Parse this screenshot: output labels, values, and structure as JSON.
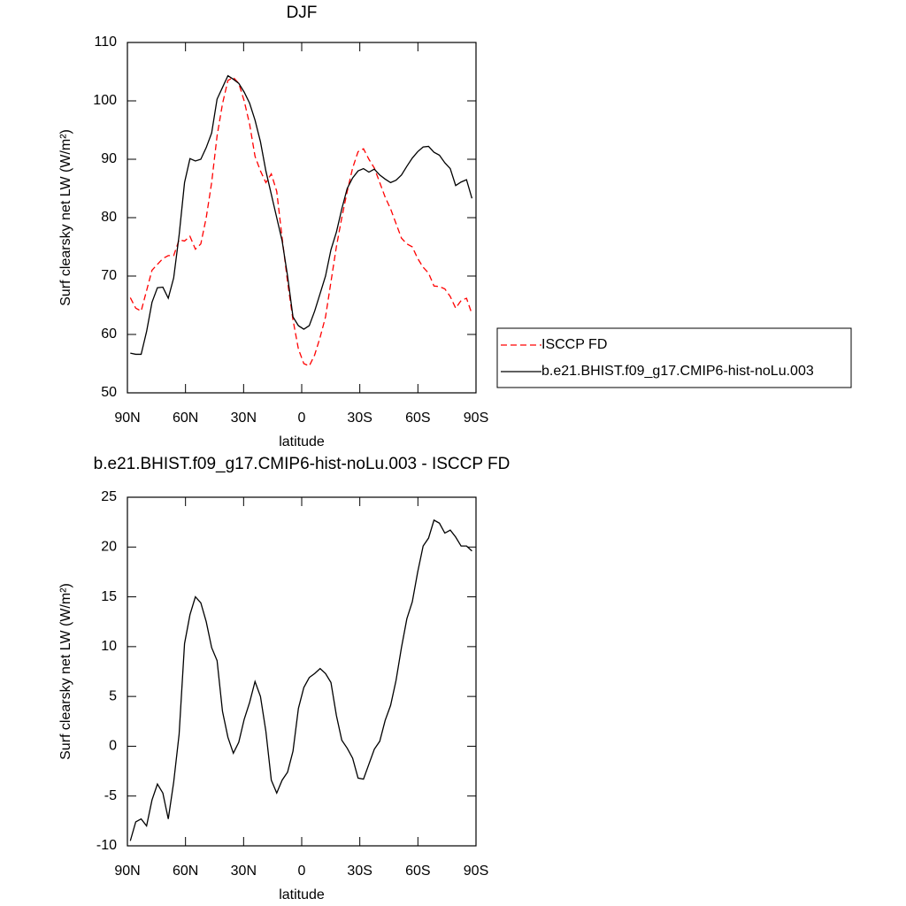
{
  "chart_data": [
    {
      "type": "line",
      "title": "DJF",
      "xlabel": "latitude",
      "ylabel": "Surf clearsky net LW (W/m²)",
      "x": [
        88.5,
        85.7,
        82.9,
        80.1,
        77.3,
        74.5,
        71.7,
        68.9,
        66.1,
        63.3,
        60.5,
        57.7,
        54.9,
        52.1,
        49.3,
        46.5,
        43.7,
        40.9,
        38.1,
        35.3,
        32.5,
        29.7,
        26.9,
        24.1,
        21.3,
        18.5,
        15.7,
        12.9,
        10.1,
        7.3,
        4.5,
        1.7,
        -1.1,
        -3.9,
        -6.7,
        -9.5,
        -12.3,
        -15.1,
        -17.9,
        -20.7,
        -23.5,
        -26.3,
        -29.1,
        -31.9,
        -34.7,
        -37.5,
        -40.3,
        -43.1,
        -45.9,
        -48.7,
        -51.5,
        -54.3,
        -57.1,
        -59.9,
        -62.7,
        -65.5,
        -68.3,
        -71.1,
        -73.9,
        -76.7,
        -79.5,
        -82.3,
        -85.1,
        -87.9
      ],
      "series": [
        {
          "name": "ISCCP FD",
          "color": "#ff0000",
          "dash": true,
          "values": [
            66.3,
            64.5,
            64,
            67.5,
            71,
            72,
            73,
            73.5,
            73.5,
            76.2,
            76,
            76.8,
            74.6,
            75.5,
            80,
            86,
            94,
            99.5,
            103.5,
            104,
            103,
            100,
            96,
            90.5,
            88,
            86,
            87.5,
            84.5,
            76.5,
            69,
            62.5,
            57.5,
            55,
            54.6,
            56.5,
            59.5,
            63,
            69,
            75,
            80,
            84.5,
            88.5,
            91.3,
            91.8,
            90,
            88.5,
            86,
            83.5,
            81.5,
            79,
            76.5,
            75.5,
            75,
            73,
            71.5,
            70.5,
            68.3,
            68.2,
            67.8,
            66.5,
            64.5,
            65.8,
            66.2,
            63.5
          ]
        },
        {
          "name": "b.e21.BHIST.f09_g17.CMIP6-hist-noLu.003",
          "color": "#000000",
          "dash": false,
          "values": [
            56.8,
            56.6,
            56.6,
            60.5,
            65.5,
            68,
            68.1,
            66.2,
            69.7,
            77,
            86,
            90.1,
            89.7,
            90,
            92,
            94.5,
            100.3,
            102.3,
            104.3,
            103.7,
            103,
            101.5,
            99.6,
            96.7,
            93,
            88,
            84,
            80,
            76,
            70,
            63,
            61.5,
            60.9,
            61.5,
            64,
            67,
            70,
            74.5,
            77.5,
            81.5,
            85,
            86.8,
            88,
            88.4,
            87.8,
            88.3,
            87.3,
            86.6,
            86,
            86.4,
            87.3,
            88.8,
            90.2,
            91.3,
            92.1,
            92.2,
            91.2,
            90.7,
            89.4,
            88.4,
            85.5,
            86.1,
            86.5,
            83.3
          ]
        }
      ],
      "xlim": [
        90,
        -90
      ],
      "xticks": [
        {
          "value": 90,
          "label": "90N"
        },
        {
          "value": 60,
          "label": "60N"
        },
        {
          "value": 30,
          "label": "30N"
        },
        0,
        {
          "value": -30,
          "label": "30S"
        },
        {
          "value": -60,
          "label": "60S"
        },
        {
          "value": -90,
          "label": "90S"
        }
      ],
      "ylim": [
        50,
        110
      ],
      "yticks": [
        50,
        60,
        70,
        80,
        90,
        100,
        110
      ],
      "legend": "right"
    },
    {
      "type": "line",
      "title": "b.e21.BHIST.f09_g17.CMIP6-hist-noLu.003 - ISCCP FD",
      "xlabel": "latitude",
      "ylabel": "Surf clearsky net LW (W/m²)",
      "x": [
        88.5,
        85.7,
        82.9,
        80.1,
        77.3,
        74.5,
        71.7,
        68.9,
        66.1,
        63.3,
        60.5,
        57.7,
        54.9,
        52.1,
        49.3,
        46.5,
        43.7,
        40.9,
        38.1,
        35.3,
        32.5,
        29.7,
        26.9,
        24.1,
        21.3,
        18.5,
        15.7,
        12.9,
        10.1,
        7.3,
        4.5,
        1.7,
        -1.1,
        -3.9,
        -6.7,
        -9.5,
        -12.3,
        -15.1,
        -17.9,
        -20.7,
        -23.5,
        -26.3,
        -29.1,
        -31.9,
        -34.7,
        -37.5,
        -40.3,
        -43.1,
        -45.9,
        -48.7,
        -51.5,
        -54.3,
        -57.1,
        -59.9,
        -62.7,
        -65.5,
        -68.3,
        -71.1,
        -73.9,
        -76.7,
        -79.5,
        -82.3,
        -85.1,
        -87.9
      ],
      "color": "#000000",
      "values": [
        -9.5,
        -7.6,
        -7.3,
        -8,
        -5.4,
        -3.8,
        -4.7,
        -7.3,
        -3.6,
        1.2,
        10.3,
        13.2,
        15,
        14.4,
        12.5,
        9.9,
        8.6,
        3.5,
        0.9,
        -0.7,
        0.4,
        2.7,
        4.4,
        6.5,
        5,
        1.5,
        -3.4,
        -4.7,
        -3.4,
        -2.6,
        -0.5,
        3.8,
        5.9,
        6.9,
        7.3,
        7.8,
        7.3,
        6.4,
        3.1,
        0.6,
        -0.2,
        -1.2,
        -3.2,
        -3.3,
        -1.8,
        -0.3,
        0.5,
        2.6,
        4.1,
        6.6,
        9.9,
        12.8,
        14.5,
        17.5,
        20.1,
        20.9,
        22.7,
        22.4,
        21.4,
        21.7,
        21,
        20.1,
        20.1,
        19.6
      ],
      "xlim": [
        90,
        -90
      ],
      "xticks": [
        {
          "value": 90,
          "label": "90N"
        },
        {
          "value": 60,
          "label": "60N"
        },
        {
          "value": 30,
          "label": "30N"
        },
        0,
        {
          "value": -30,
          "label": "30S"
        },
        {
          "value": -60,
          "label": "60S"
        },
        {
          "value": -90,
          "label": "90S"
        }
      ],
      "ylim": [
        -10,
        25
      ],
      "yticks": [
        -10,
        -5,
        0,
        5,
        10,
        15,
        20,
        25
      ]
    }
  ]
}
